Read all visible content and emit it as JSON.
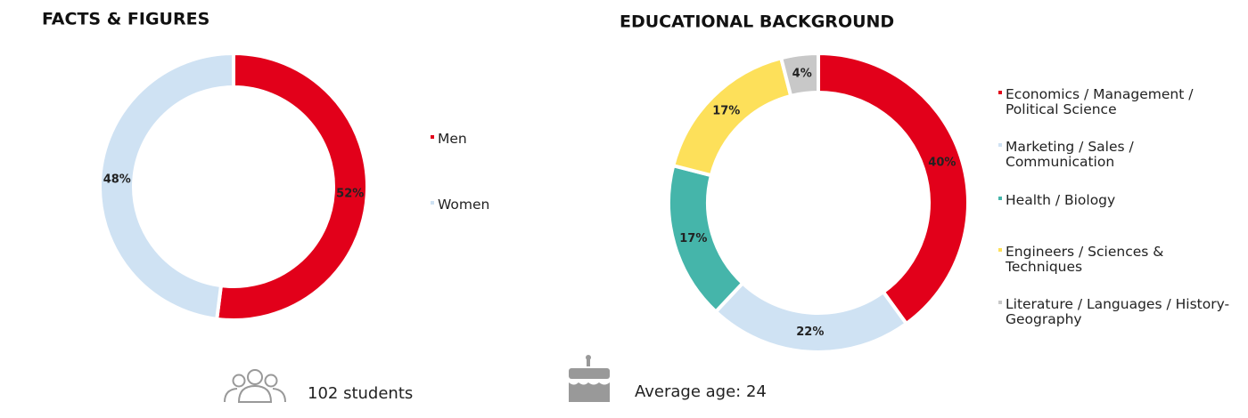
{
  "chart_data": [
    {
      "type": "donut",
      "title": "FACTS & FIGURES",
      "categories": [
        "Men",
        "Women"
      ],
      "values": [
        52,
        48
      ],
      "value_labels": [
        "52%",
        "48%"
      ],
      "colors": [
        "#e2001a",
        "#cfe2f3"
      ]
    },
    {
      "type": "donut",
      "title": "EDUCATIONAL BACKGROUND",
      "categories": [
        "Economics / Management / Political Science",
        "Marketing / Sales / Communication",
        "Health / Biology",
        "Engineers / Sciences & Techniques",
        "Literature / Languages / History-Geography"
      ],
      "values": [
        40,
        22,
        17,
        17,
        4
      ],
      "value_labels": [
        "40%",
        "22%",
        "17%",
        "17%",
        "4%"
      ],
      "colors": [
        "#e2001a",
        "#cfe2f3",
        "#45b5aa",
        "#fde05a",
        "#c8c8c8"
      ]
    }
  ],
  "stats": [
    "102 students",
    "Average age: 24"
  ]
}
